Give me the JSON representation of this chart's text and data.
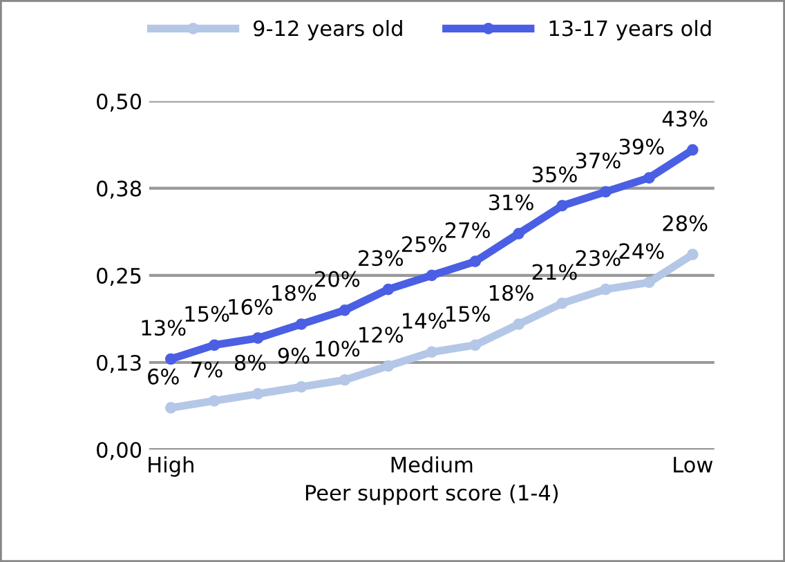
{
  "chart_data": {
    "type": "line",
    "xlabel": "Peer support score (1-4)",
    "categories": [
      "High",
      null,
      null,
      null,
      null,
      null,
      "Medium",
      null,
      null,
      null,
      null,
      null,
      "Low"
    ],
    "series": [
      {
        "name": "9-12 years old",
        "color": "#b4c7e7",
        "values": [
          0.06,
          0.07,
          0.08,
          0.09,
          0.1,
          0.12,
          0.14,
          0.15,
          0.18,
          0.21,
          0.23,
          0.24,
          0.28
        ],
        "value_labels": [
          "6%",
          "7%",
          "8%",
          "9%",
          "10%",
          "12%",
          "14%",
          "15%",
          "18%",
          "21%",
          "23%",
          "24%",
          "28%"
        ]
      },
      {
        "name": "13-17 years old",
        "color": "#4a5fe3",
        "values": [
          0.13,
          0.15,
          0.16,
          0.18,
          0.2,
          0.23,
          0.25,
          0.27,
          0.31,
          0.35,
          0.37,
          0.39,
          0.43
        ],
        "value_labels": [
          "13%",
          "15%",
          "16%",
          "18%",
          "20%",
          "23%",
          "25%",
          "27%",
          "31%",
          "35%",
          "37%",
          "39%",
          "43%"
        ]
      }
    ],
    "ylim": [
      0,
      0.5
    ],
    "yticks": [
      {
        "value": 0,
        "label": "0,00"
      },
      {
        "value": 0.125,
        "label": "0,13"
      },
      {
        "value": 0.25,
        "label": "0,25"
      },
      {
        "value": 0.375,
        "label": "0,38"
      },
      {
        "value": 0.5,
        "label": "0,50"
      }
    ],
    "grid": "y",
    "legend": "top",
    "marker": "circle"
  }
}
